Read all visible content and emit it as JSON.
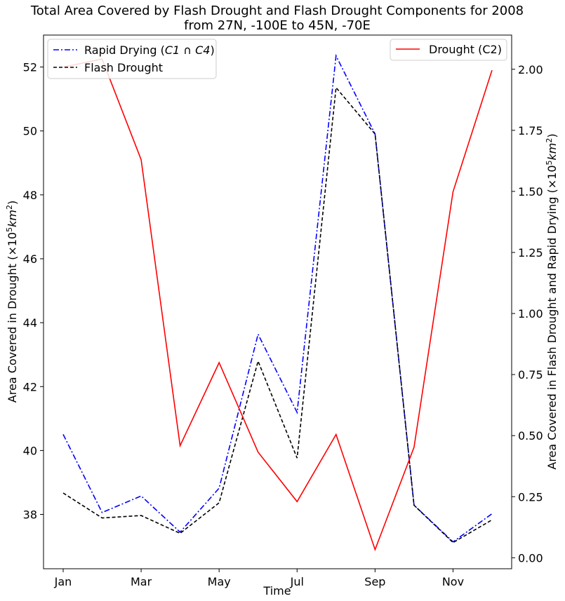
{
  "chart_data": {
    "type": "line",
    "title_line1": "Total Area Covered by Flash Drought and Flash Drought Components for 2008",
    "title_line2": "from 27N, -100E to 45N, -70E",
    "xlabel": "Time",
    "ylabel_left_prefix": "Area Covered in Drought (×10",
    "ylabel_left_sup": "5",
    "ylabel_left_unit": "km",
    "ylabel_left_unit_sup": "2",
    "ylabel_left_suffix": ")",
    "ylabel_right_prefix": "Area Covered in Flash Drought and Rapid Drying (×10",
    "ylabel_right_sup": "5",
    "ylabel_right_unit": "km",
    "ylabel_right_unit_sup": "2",
    "ylabel_right_suffix": ")",
    "x": [
      "Jan",
      "Feb",
      "Mar",
      "Apr",
      "May",
      "Jun",
      "Jul",
      "Aug",
      "Sep",
      "Oct",
      "Nov",
      "Dec"
    ],
    "xtick_labels": [
      "Jan",
      "Mar",
      "May",
      "Jul",
      "Sep",
      "Nov"
    ],
    "left_axis": {
      "ylim": [
        36.3,
        53.0
      ],
      "ticks": [
        38,
        40,
        42,
        44,
        46,
        48,
        50,
        52
      ],
      "tick_labels": [
        "38",
        "40",
        "42",
        "44",
        "46",
        "48",
        "50",
        "52"
      ]
    },
    "right_axis": {
      "ylim": [
        -0.045,
        2.14
      ],
      "ticks": [
        0.0,
        0.25,
        0.5,
        0.75,
        1.0,
        1.25,
        1.5,
        1.75,
        2.0
      ],
      "tick_labels": [
        "0.00",
        "0.25",
        "0.50",
        "0.75",
        "1.00",
        "1.25",
        "1.50",
        "1.75",
        "2.00"
      ]
    },
    "series": [
      {
        "name": "Rapid Drying (C1 ∩ C4)",
        "legend_main": "Rapid Drying (",
        "legend_math": "C1 ∩ C4",
        "legend_close": ")",
        "axis": "right",
        "color": "#0000ff",
        "dash": "8,3,2,3",
        "values": [
          0.505,
          0.185,
          0.253,
          0.105,
          0.285,
          0.915,
          0.595,
          2.055,
          1.735,
          0.215,
          0.065,
          0.18
        ]
      },
      {
        "name": "Flash Drought",
        "legend_main": "Flash Drought",
        "axis": "right",
        "color": "#000000",
        "dash": "5,3",
        "values": [
          0.265,
          0.163,
          0.173,
          0.1,
          0.225,
          0.805,
          0.408,
          1.925,
          1.735,
          0.215,
          0.062,
          0.155
        ]
      },
      {
        "name": "Drought (C2)",
        "legend_main": "Drought (C2)",
        "axis": "left",
        "color": "#ff0000",
        "dash": "",
        "values": [
          52.0,
          52.25,
          49.1,
          40.15,
          42.75,
          39.95,
          38.4,
          40.5,
          36.9,
          40.1,
          48.1,
          51.9
        ]
      }
    ],
    "legend_left": "upper left",
    "legend_right": "upper right",
    "grid": false
  }
}
